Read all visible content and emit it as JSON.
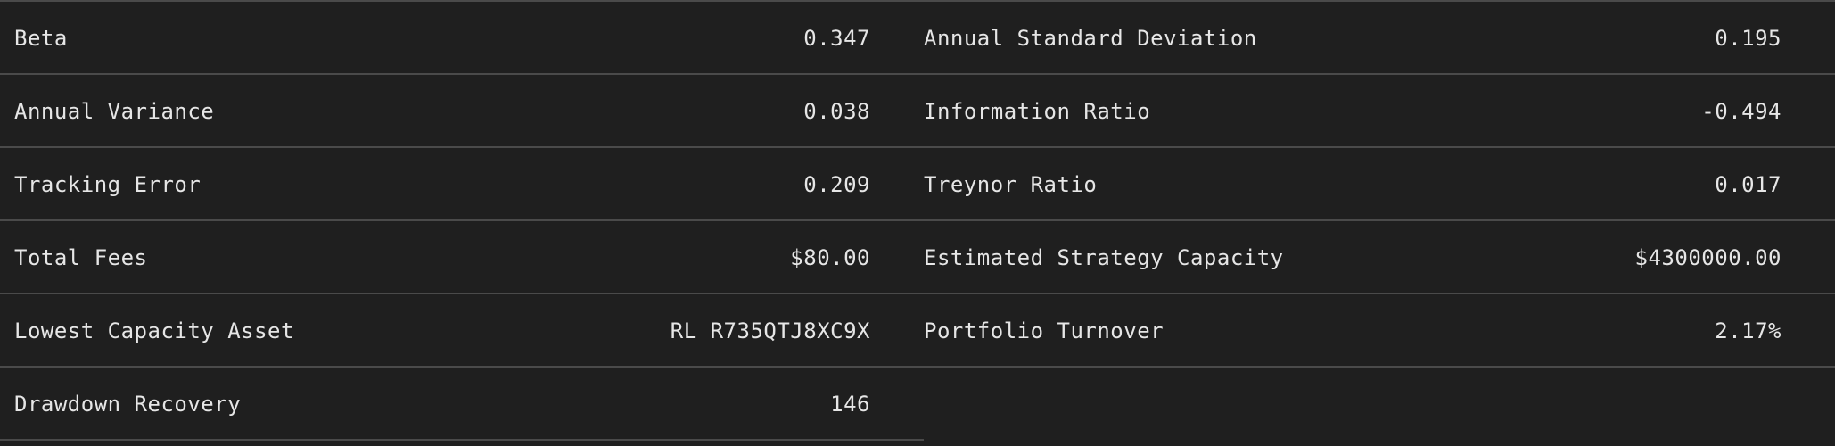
{
  "stats": {
    "rows": [
      {
        "left": {
          "label": "Beta",
          "value": "0.347"
        },
        "right": {
          "label": "Annual Standard Deviation",
          "value": "0.195"
        }
      },
      {
        "left": {
          "label": "Annual Variance",
          "value": "0.038"
        },
        "right": {
          "label": "Information Ratio",
          "value": "-0.494"
        }
      },
      {
        "left": {
          "label": "Tracking Error",
          "value": "0.209"
        },
        "right": {
          "label": "Treynor Ratio",
          "value": "0.017"
        }
      },
      {
        "left": {
          "label": "Total Fees",
          "value": "$80.00"
        },
        "right": {
          "label": "Estimated Strategy Capacity",
          "value": "$4300000.00"
        }
      },
      {
        "left": {
          "label": "Lowest Capacity Asset",
          "value": "RL R735QTJ8XC9X"
        },
        "right": {
          "label": "Portfolio Turnover",
          "value": "2.17%"
        }
      },
      {
        "left": {
          "label": "Drawdown Recovery",
          "value": "146"
        }
      }
    ]
  },
  "colors": {
    "background": "#1f1f1f",
    "text": "#e6e6e6",
    "divider": "#4a4a4a"
  }
}
